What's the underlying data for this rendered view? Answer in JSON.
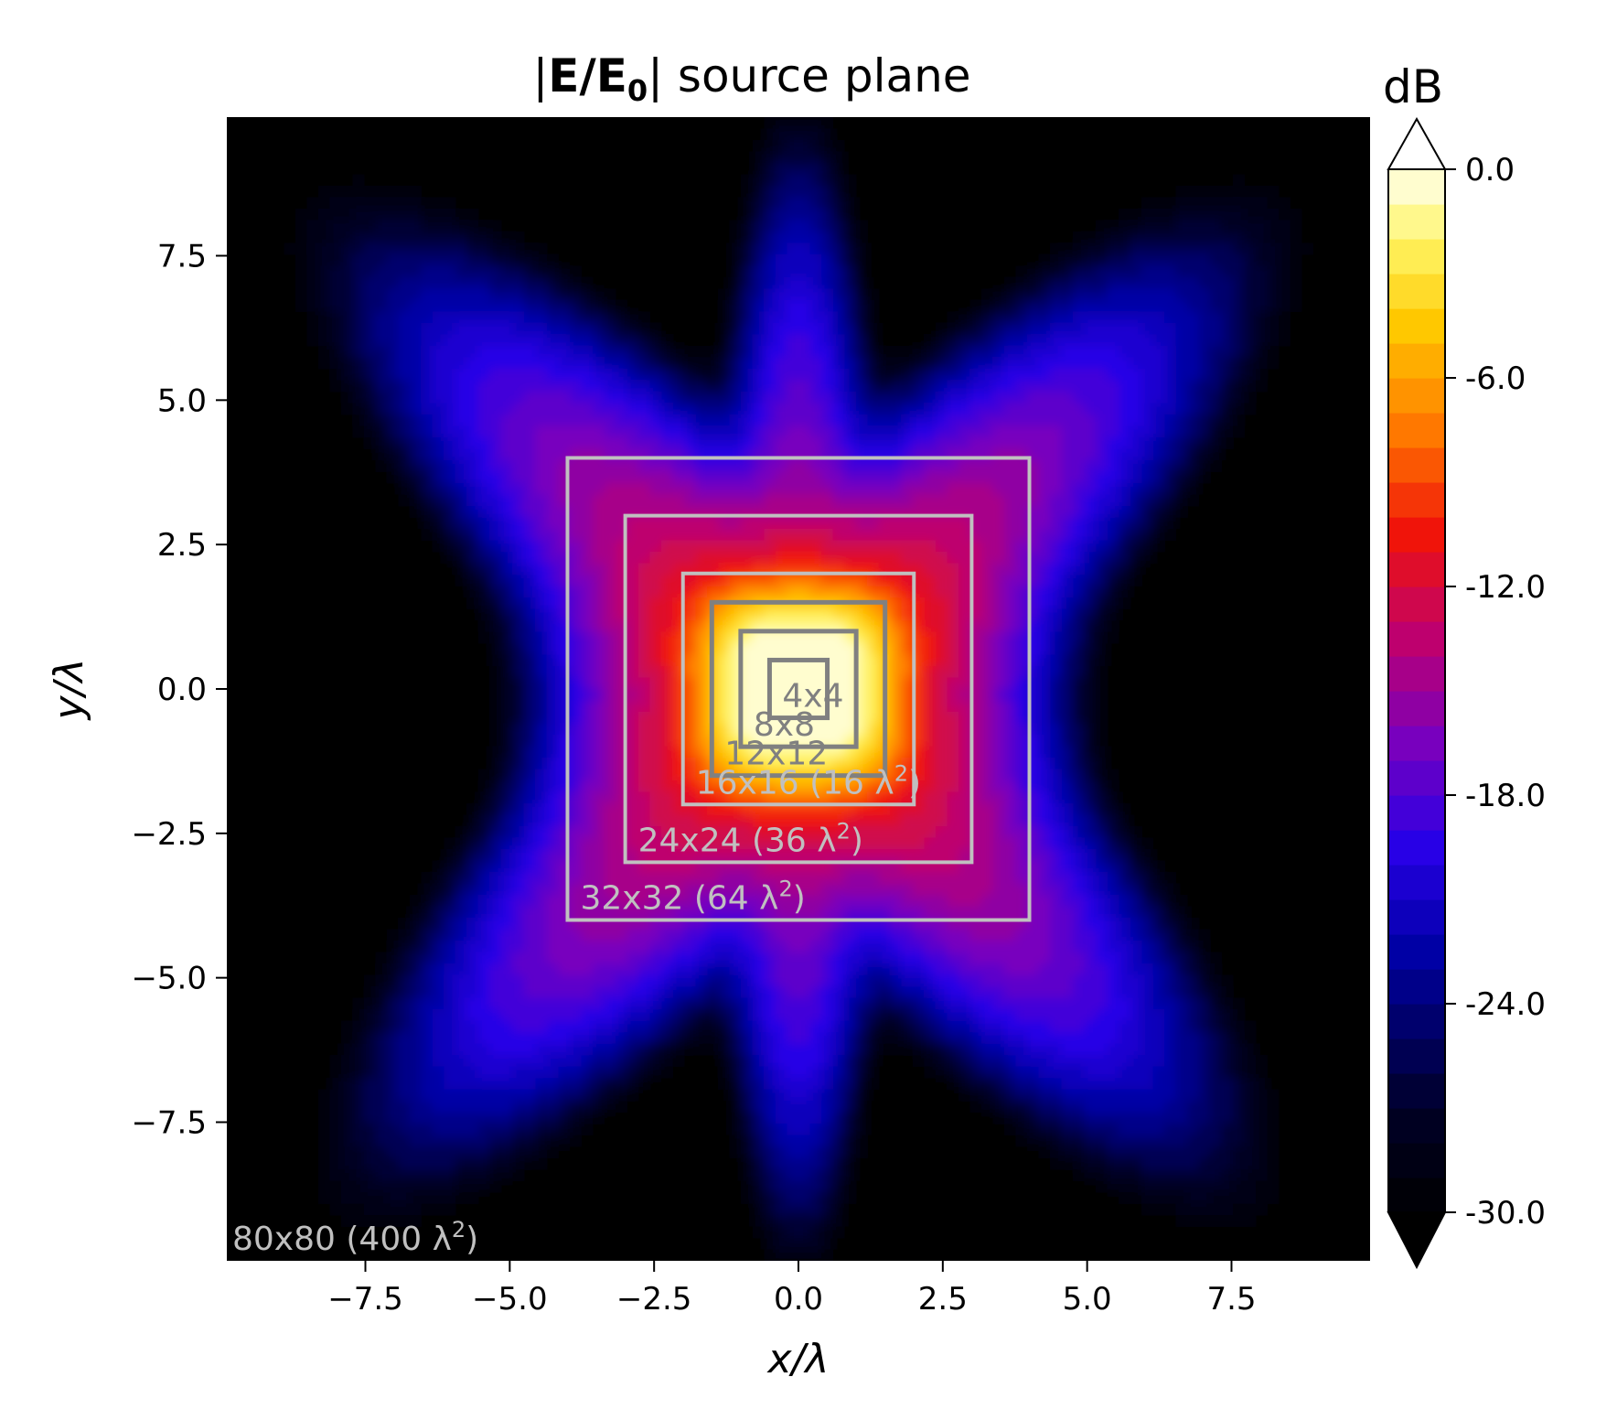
{
  "chart_data": {
    "type": "heatmap",
    "title": "|E/E0| source plane",
    "title_parts": {
      "bar1": "|",
      "bold_base": "E/E",
      "bold_sub": "0",
      "bar2": "|",
      "rest": " source plane"
    },
    "xlabel": "x/λ",
    "ylabel": "y/λ",
    "xlim": [
      -9.9,
      9.9
    ],
    "ylim": [
      -9.9,
      9.9
    ],
    "xticks": [
      -7.5,
      -5.0,
      -2.5,
      0.0,
      2.5,
      5.0,
      7.5
    ],
    "xtick_labels": [
      "−7.5",
      "−5.0",
      "−2.5",
      "0.0",
      "2.5",
      "5.0",
      "7.5"
    ],
    "yticks": [
      7.5,
      5.0,
      2.5,
      0.0,
      -2.5,
      -5.0,
      -7.5
    ],
    "ytick_labels": [
      "7.5",
      "5.0",
      "2.5",
      "0.0",
      "−2.5",
      "−5.0",
      "−7.5"
    ],
    "colorbar": {
      "label": "dB",
      "min": -30.0,
      "max": 0.0,
      "levels": 30,
      "ticks": [
        0.0,
        -6.0,
        -12.0,
        -18.0,
        -24.0,
        -30.0
      ],
      "tick_labels": [
        "0.0",
        "-6.0",
        "-12.0",
        "-18.0",
        "-24.0",
        "-30.0"
      ],
      "extend": "both",
      "colormap": "gnuplot2"
    },
    "field_peak_db": 0.0,
    "boxes": [
      {
        "label": "4x4",
        "half_size": 0.5,
        "color": "#808080"
      },
      {
        "label": "8x8",
        "half_size": 1.0,
        "color": "#808080"
      },
      {
        "label": "12x12",
        "half_size": 1.5,
        "color": "#808080"
      },
      {
        "label": "16x16 (16 λ",
        "sup": "2",
        "label_tail": ")",
        "half_size": 2.0,
        "color": "#c0c0c0"
      },
      {
        "label": "24x24 (36 λ",
        "sup": "2",
        "label_tail": ")",
        "half_size": 3.0,
        "color": "#c0c0c0"
      },
      {
        "label": "32x32 (64 λ",
        "sup": "2",
        "label_tail": ")",
        "half_size": 4.0,
        "color": "#c0c0c0"
      },
      {
        "label": "80x80 (400 λ",
        "sup": "2",
        "label_tail": ")",
        "half_size": 10.0,
        "color": "#c0c0c0"
      }
    ]
  }
}
